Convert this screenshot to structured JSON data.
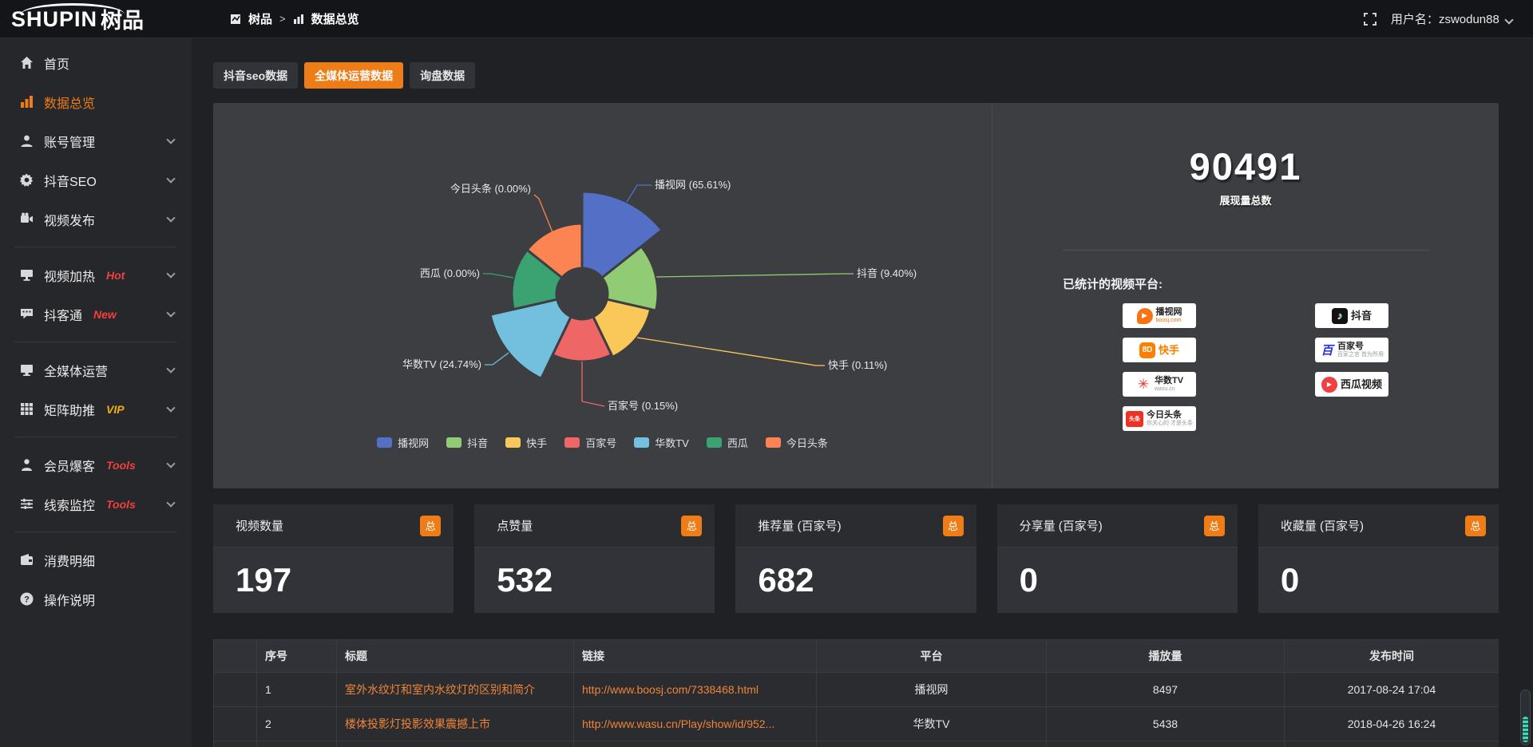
{
  "topbar": {
    "logo_main": "SHUPIN",
    "logo_cn": "树品",
    "breadcrumb": {
      "root": "树品",
      "separator": ">",
      "current": "数据总览"
    },
    "username_label": "用户名：",
    "username": "zswodun88"
  },
  "sidebar": {
    "items": [
      {
        "label": "首页",
        "icon": "home",
        "chevron": false,
        "active": false
      },
      {
        "label": "数据总览",
        "icon": "bars",
        "chevron": false,
        "active": true
      },
      {
        "label": "账号管理",
        "icon": "user",
        "chevron": true,
        "active": false
      },
      {
        "label": "抖音SEO",
        "icon": "gear",
        "chevron": true,
        "active": false
      },
      {
        "label": "视频发布",
        "icon": "video",
        "chevron": true,
        "active": false,
        "divider_after": true
      },
      {
        "label": "视频加热",
        "icon": "monitor2",
        "badge": "Hot",
        "badge_color": "#f4403c",
        "chevron": true,
        "active": false
      },
      {
        "label": "抖客通",
        "icon": "chat",
        "badge": "New",
        "badge_color": "#f4403c",
        "chevron": true,
        "active": false,
        "divider_after": true
      },
      {
        "label": "全媒体运营",
        "icon": "monitor",
        "chevron": true,
        "active": false
      },
      {
        "label": "矩阵助推",
        "icon": "grid",
        "badge": "VIP",
        "badge_color": "#efb10c",
        "chevron": true,
        "active": false,
        "divider_after": true
      },
      {
        "label": "会员爆客",
        "icon": "user2",
        "badge": "Tools",
        "badge_color": "#f4403c",
        "chevron": true,
        "active": false
      },
      {
        "label": "线索监控",
        "icon": "sliders",
        "badge": "Tools",
        "badge_color": "#f4403c",
        "chevron": true,
        "active": false,
        "divider_after": true
      },
      {
        "label": "消费明细",
        "icon": "wallet",
        "chevron": false,
        "active": false
      },
      {
        "label": "操作说明",
        "icon": "help",
        "chevron": false,
        "active": false
      }
    ]
  },
  "tabs": [
    {
      "label": "抖音seo数据",
      "active": false
    },
    {
      "label": "全媒体运营数据",
      "active": true
    },
    {
      "label": "询盘数据",
      "active": false
    }
  ],
  "chart_data": {
    "type": "pie",
    "style": "nightingale-rose-donut",
    "legend_position": "bottom",
    "slices": [
      {
        "name": "播视网",
        "pct": "65.61",
        "color": "#5470C6",
        "radius_px": 128
      },
      {
        "name": "抖音",
        "pct": "9.40",
        "color": "#91CC75",
        "radius_px": 95
      },
      {
        "name": "快手",
        "pct": "0.11",
        "color": "#FAC858",
        "radius_px": 88
      },
      {
        "name": "百家号",
        "pct": "0.15",
        "color": "#EE6666",
        "radius_px": 85
      },
      {
        "name": "华数TV",
        "pct": "24.74",
        "color": "#73C0DE",
        "radius_px": 118
      },
      {
        "name": "西瓜",
        "pct": "0.00",
        "color": "#3BA272",
        "radius_px": 88
      },
      {
        "name": "今日头条",
        "pct": "0.00",
        "color": "#FC8452",
        "radius_px": 88
      }
    ]
  },
  "summary": {
    "value": "90491",
    "value_label": "展现量总数",
    "platforms_label": "已统计的视频平台:",
    "platforms": [
      {
        "name": "播视网",
        "sub": "boosj.com",
        "icon": "boosj"
      },
      {
        "name": "抖音",
        "sub": "",
        "icon": "douyin"
      },
      {
        "name": "快手",
        "sub": "",
        "icon": "kuaishou"
      },
      {
        "name": "百家号",
        "sub": "百家之言 皆为所用",
        "icon": "baijia"
      },
      {
        "name": "华数TV",
        "sub": "wasu.cn",
        "icon": "wasu"
      },
      {
        "name": "西瓜视频",
        "sub": "",
        "icon": "xigua"
      },
      {
        "name": "今日头条",
        "sub": "你关心的 才是头条",
        "icon": "toutiao"
      }
    ]
  },
  "stat_cards": [
    {
      "label": "视频数量",
      "badge": "总",
      "value": "197"
    },
    {
      "label": "点赞量",
      "badge": "总",
      "value": "532"
    },
    {
      "label": "推荐量 (百家号)",
      "badge": "总",
      "value": "682"
    },
    {
      "label": "分享量 (百家号)",
      "badge": "总",
      "value": "0"
    },
    {
      "label": "收藏量 (百家号)",
      "badge": "总",
      "value": "0"
    }
  ],
  "table": {
    "headers": [
      "序号",
      "标题",
      "链接",
      "平台",
      "播放量",
      "发布时间"
    ],
    "rows": [
      {
        "no": "1",
        "title": "室外水纹灯和室内水纹灯的区别和简介",
        "link": "http://www.boosj.com/7338468.html",
        "platform": "播视网",
        "plays": "8497",
        "time": "2017-08-24 17:04"
      },
      {
        "no": "2",
        "title": "楼体投影灯投影效果震撼上市",
        "link": "http://www.wasu.cn/Play/show/id/952...",
        "platform": "华数TV",
        "plays": "5438",
        "time": "2018-04-26 16:24"
      }
    ]
  }
}
